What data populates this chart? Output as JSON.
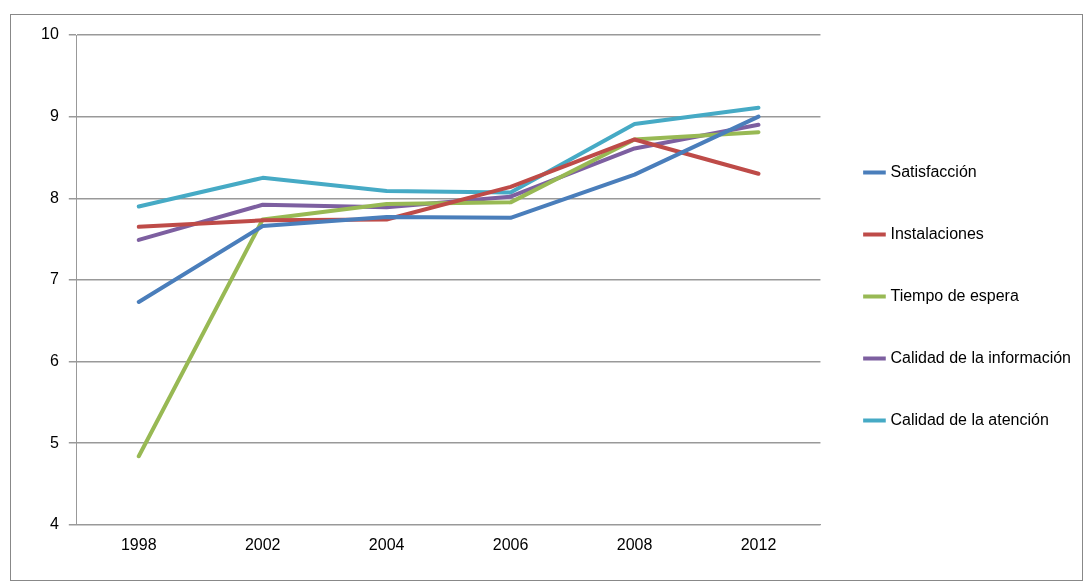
{
  "chart_data": {
    "type": "line",
    "categories": [
      "1998",
      "2002",
      "2004",
      "2006",
      "2008",
      "2012"
    ],
    "series": [
      {
        "name": "Satisfacción",
        "color": "#4a7ebb",
        "values": [
          6.73,
          7.66,
          7.77,
          7.76,
          8.29,
          9.0
        ]
      },
      {
        "name": "Instalaciones",
        "color": "#be4b48",
        "values": [
          7.65,
          7.73,
          7.74,
          8.14,
          8.72,
          8.3
        ]
      },
      {
        "name": "Tiempo de espera",
        "color": "#98b954",
        "values": [
          4.84,
          7.74,
          7.93,
          7.95,
          8.72,
          8.81
        ]
      },
      {
        "name": "Calidad de la información",
        "color": "#7d5fa0",
        "values": [
          7.49,
          7.92,
          7.89,
          8.02,
          8.61,
          8.9
        ]
      },
      {
        "name": "Calidad de la atención",
        "color": "#46aac5",
        "values": [
          7.9,
          8.25,
          8.09,
          8.07,
          8.91,
          9.11
        ]
      }
    ],
    "ylim": [
      4,
      10
    ],
    "yticks": [
      4,
      5,
      6,
      7,
      8,
      9,
      10
    ],
    "grid": "y",
    "legend": "right",
    "marker": "none",
    "line_style": "solid"
  }
}
